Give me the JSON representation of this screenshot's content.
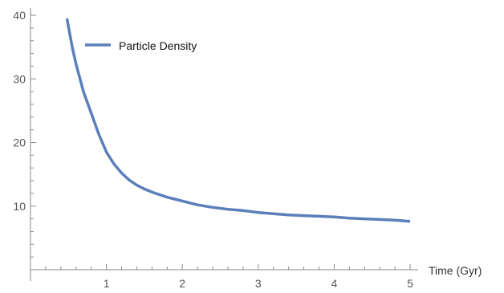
{
  "chart_data": {
    "type": "line",
    "title": "",
    "xlabel": "Time (Gyr)",
    "ylabel": "",
    "xlim": [
      0,
      5
    ],
    "ylim": [
      0,
      40
    ],
    "x_ticks": [
      1,
      2,
      3,
      4,
      5
    ],
    "y_ticks": [
      10,
      20,
      30,
      40
    ],
    "x_minor_ticks": [
      0.2,
      0.4,
      0.6,
      0.8,
      1.2,
      1.4,
      1.6,
      1.8,
      2.2,
      2.4,
      2.6,
      2.8,
      3.2,
      3.4,
      3.6,
      3.8,
      4.2,
      4.4,
      4.6,
      4.8
    ],
    "y_minor_ticks": [
      2,
      4,
      6,
      8,
      12,
      14,
      16,
      18,
      22,
      24,
      26,
      28,
      32,
      34,
      36,
      38
    ],
    "grid": false,
    "legend": "top-left",
    "series": [
      {
        "name": "Particle Density",
        "color": "#5b7fba",
        "x": [
          0.48,
          0.55,
          0.6,
          0.7,
          0.8,
          0.9,
          1.0,
          1.1,
          1.2,
          1.3,
          1.4,
          1.5,
          1.6,
          1.7,
          1.8,
          1.9,
          2.0,
          2.2,
          2.4,
          2.6,
          2.8,
          3.0,
          3.2,
          3.4,
          3.6,
          3.8,
          4.0,
          4.2,
          4.4,
          4.6,
          4.8,
          5.0
        ],
        "y": [
          39.5,
          35.0,
          32.3,
          27.9,
          24.6,
          21.3,
          18.5,
          16.6,
          15.2,
          14.1,
          13.3,
          12.7,
          12.2,
          11.8,
          11.4,
          11.1,
          10.8,
          10.2,
          9.8,
          9.5,
          9.3,
          9.0,
          8.8,
          8.6,
          8.5,
          8.4,
          8.3,
          8.1,
          8.0,
          7.9,
          7.8,
          7.6
        ]
      }
    ]
  }
}
